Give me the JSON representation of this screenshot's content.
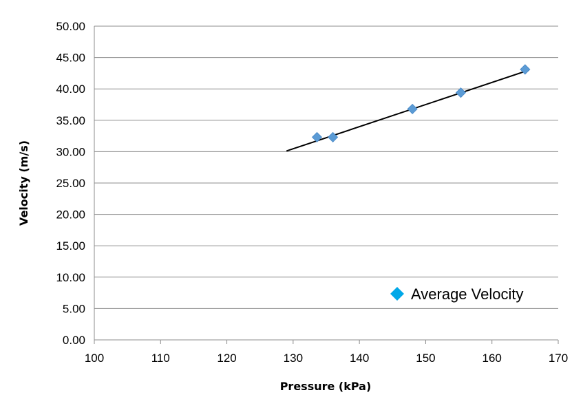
{
  "chart_data": {
    "type": "scatter",
    "xlabel": "Pressure (kPa)",
    "ylabel": "Velocity (m/s)",
    "xlim": [
      100,
      170
    ],
    "ylim": [
      0,
      50
    ],
    "x_ticks": [
      "100",
      "110",
      "120",
      "130",
      "140",
      "150",
      "160",
      "170"
    ],
    "y_ticks": [
      "0.00",
      "5.00",
      "10.00",
      "15.00",
      "20.00",
      "25.00",
      "30.00",
      "35.00",
      "40.00",
      "45.00",
      "50.00"
    ],
    "grid": "horizontal",
    "legend_position": "bottom-right",
    "series": [
      {
        "name": "Average Velocity",
        "marker": "diamond",
        "color": "#5b9bd5",
        "legend_color": "#00a8e8",
        "points": [
          {
            "x": 133.6,
            "y": 32.3
          },
          {
            "x": 136.0,
            "y": 32.3
          },
          {
            "x": 148.0,
            "y": 36.8
          },
          {
            "x": 155.3,
            "y": 39.4
          },
          {
            "x": 165.0,
            "y": 43.1
          }
        ]
      }
    ],
    "trendline": {
      "type": "linear",
      "color": "#000000",
      "x": [
        129,
        165.6
      ],
      "y": [
        30.1,
        43.0
      ]
    }
  }
}
